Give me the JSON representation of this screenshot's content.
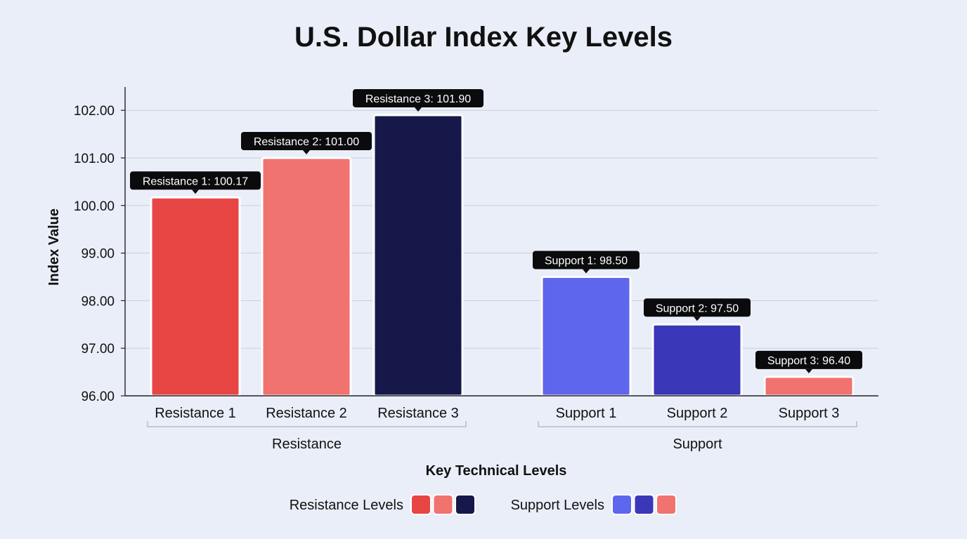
{
  "chart_data": {
    "type": "bar",
    "title": "U.S. Dollar Index Key Levels",
    "xlabel": "Key Technical Levels",
    "ylabel": "Index Value",
    "ylim": [
      96,
      102.5
    ],
    "yticks": [
      "96.00",
      "97.00",
      "98.00",
      "99.00",
      "100.00",
      "101.00",
      "102.00"
    ],
    "grid": true,
    "categories": [
      "Resistance 1",
      "Resistance 2",
      "Resistance 3",
      "Support 1",
      "Support 2",
      "Support 3"
    ],
    "values": [
      100.17,
      101.0,
      101.9,
      98.5,
      97.5,
      96.4
    ],
    "data_labels": [
      "Resistance 1: 100.17",
      "Resistance 2: 101.00",
      "Resistance 3: 101.90",
      "Support 1: 98.50",
      "Support 2: 97.50",
      "Support 3: 96.40"
    ],
    "bar_colors": [
      "#e84545",
      "#f07370",
      "#17184a",
      "#5f66ee",
      "#3a37b8",
      "#f07370"
    ],
    "groups": [
      {
        "label": "Resistance",
        "members": [
          0,
          1,
          2
        ]
      },
      {
        "label": "Support",
        "members": [
          3,
          4,
          5
        ]
      }
    ],
    "legend": {
      "placement": "bottom",
      "entries": [
        {
          "label": "Resistance Levels",
          "colors": [
            "#e84545",
            "#f07370",
            "#17184a"
          ]
        },
        {
          "label": "Support Levels",
          "colors": [
            "#5f66ee",
            "#3a37b8",
            "#f07370"
          ]
        }
      ]
    }
  }
}
